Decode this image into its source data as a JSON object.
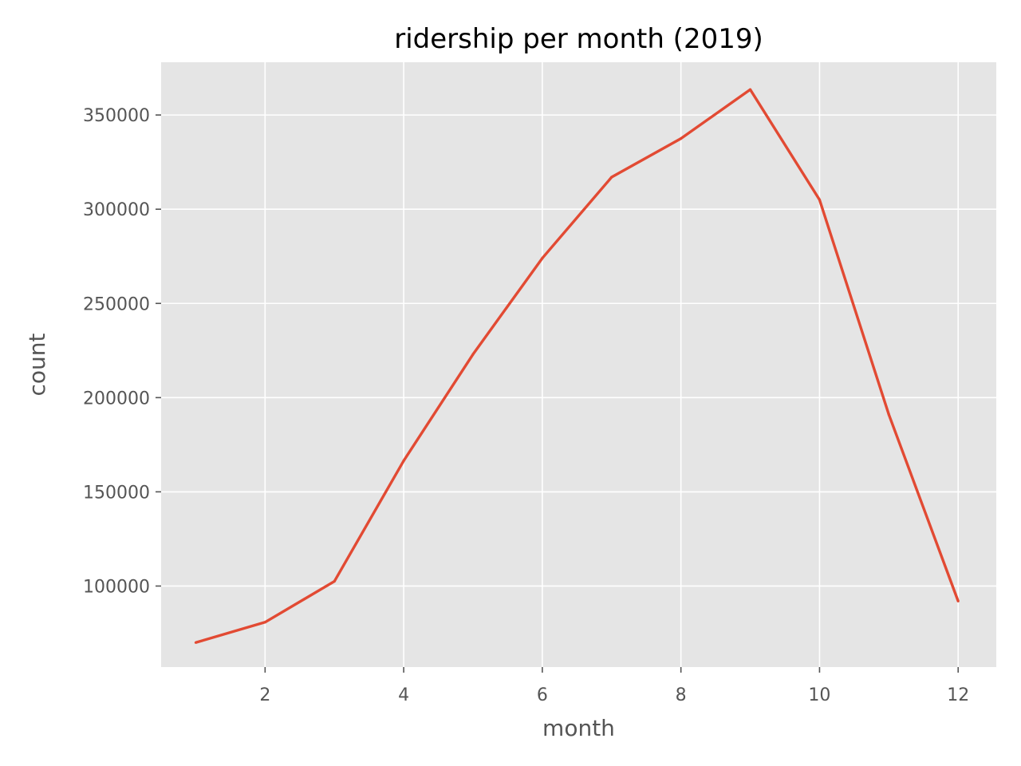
{
  "chart_data": {
    "type": "line",
    "title": "ridership per month (2019)",
    "xlabel": "month",
    "ylabel": "count",
    "x": [
      1,
      2,
      3,
      4,
      5,
      6,
      7,
      8,
      9,
      10,
      11,
      12
    ],
    "series": [
      {
        "values": [
          70000,
          80800,
          102500,
          166500,
          223000,
          274000,
          317000,
          337500,
          363500,
          305000,
          191000,
          92000
        ]
      }
    ],
    "xlim": [
      0.5,
      12.55
    ],
    "ylim": [
      57000,
      378000
    ],
    "xticks": [
      2,
      4,
      6,
      8,
      10,
      12
    ],
    "yticks": [
      100000,
      150000,
      200000,
      250000,
      300000,
      350000
    ],
    "grid": true,
    "legend": "none",
    "colors": {
      "line": "#E24A33",
      "plot_background": "#E5E5E5",
      "grid": "#FFFFFF",
      "text": "#555555"
    }
  }
}
